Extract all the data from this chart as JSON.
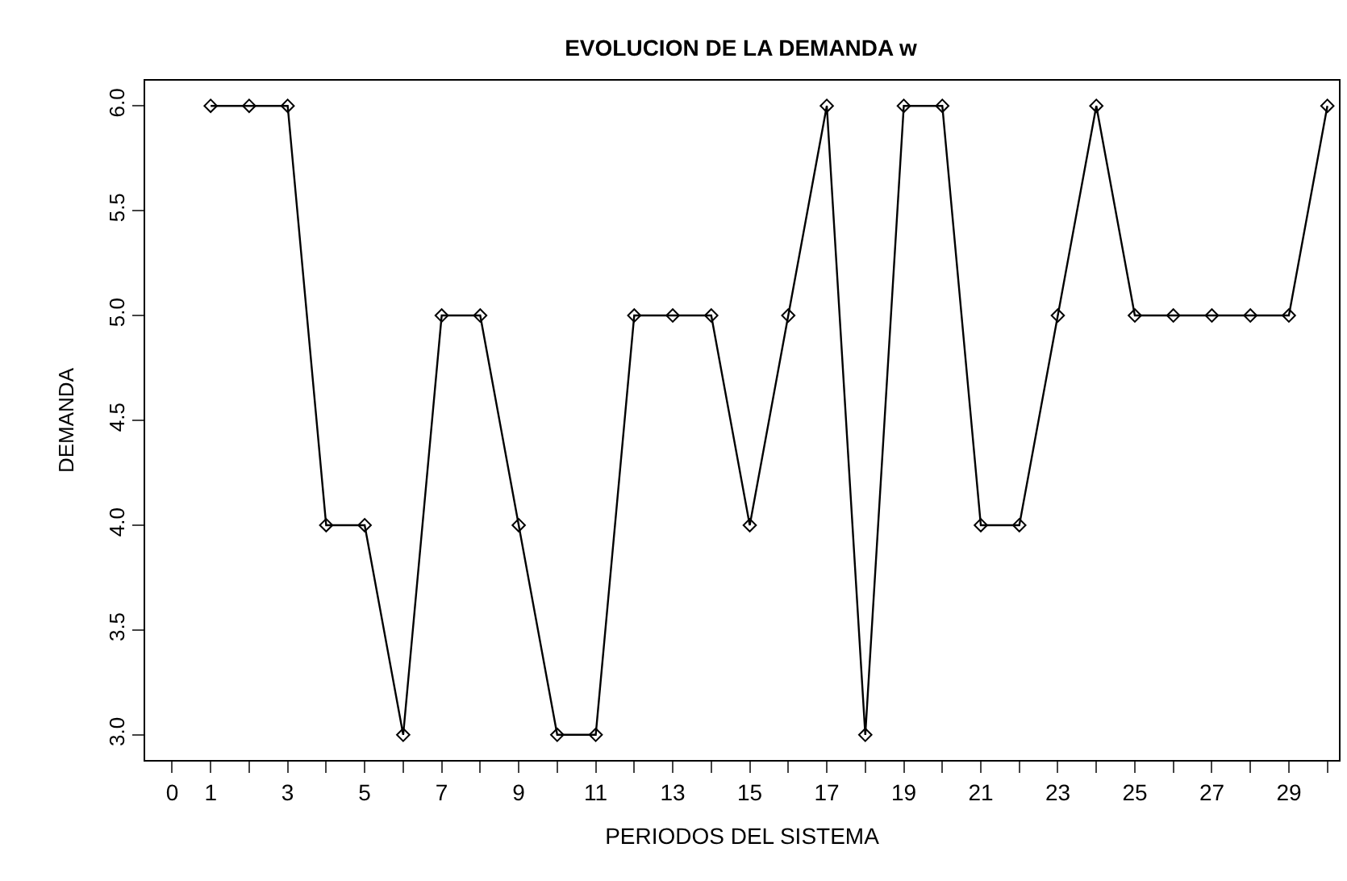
{
  "chart_data": {
    "type": "line",
    "title": "EVOLUCION DE LA DEMANDA w",
    "xlabel": "PERIODOS DEL SISTEMA",
    "ylabel": "DEMANDA",
    "x": [
      1,
      2,
      3,
      4,
      5,
      6,
      7,
      8,
      9,
      10,
      11,
      12,
      13,
      14,
      15,
      16,
      17,
      18,
      19,
      20,
      21,
      22,
      23,
      24,
      25,
      26,
      27,
      28,
      29,
      30
    ],
    "series": [
      {
        "color": "#000000",
        "values": [
          6,
          6,
          6,
          4,
          4,
          3,
          5,
          5,
          4,
          3,
          3,
          5,
          5,
          5,
          4,
          5,
          6,
          3,
          6,
          6,
          4,
          4,
          5,
          6,
          5,
          5,
          5,
          5,
          5,
          6
        ]
      }
    ],
    "xlim": [
      -0.7,
      30.3
    ],
    "ylim": [
      2.88,
      6.12
    ],
    "xticks": [
      0,
      1,
      {
        "value": 2,
        "label": null
      },
      3,
      {
        "value": 4,
        "label": null
      },
      5,
      {
        "value": 6,
        "label": null
      },
      7,
      {
        "value": 8,
        "label": null
      },
      9,
      {
        "value": 10,
        "label": null
      },
      11,
      {
        "value": 12,
        "label": null
      },
      13,
      {
        "value": 14,
        "label": null
      },
      15,
      {
        "value": 16,
        "label": null
      },
      17,
      {
        "value": 18,
        "label": null
      },
      19,
      {
        "value": 20,
        "label": null
      },
      21,
      {
        "value": 22,
        "label": null
      },
      23,
      {
        "value": 24,
        "label": null
      },
      25,
      {
        "value": 26,
        "label": null
      },
      27,
      {
        "value": 28,
        "label": null
      },
      29,
      {
        "value": 30,
        "label": null
      }
    ],
    "yticks": [
      {
        "value": 3,
        "label": "3.0"
      },
      {
        "value": 3.5,
        "label": "3.5"
      },
      {
        "value": 4,
        "label": "4.0"
      },
      {
        "value": 4.5,
        "label": "4.5"
      },
      {
        "value": 5,
        "label": "5.0"
      },
      {
        "value": 5.5,
        "label": "5.5"
      },
      {
        "value": 6,
        "label": "6.0"
      }
    ],
    "marker": "diamond",
    "line_style": "solid"
  }
}
